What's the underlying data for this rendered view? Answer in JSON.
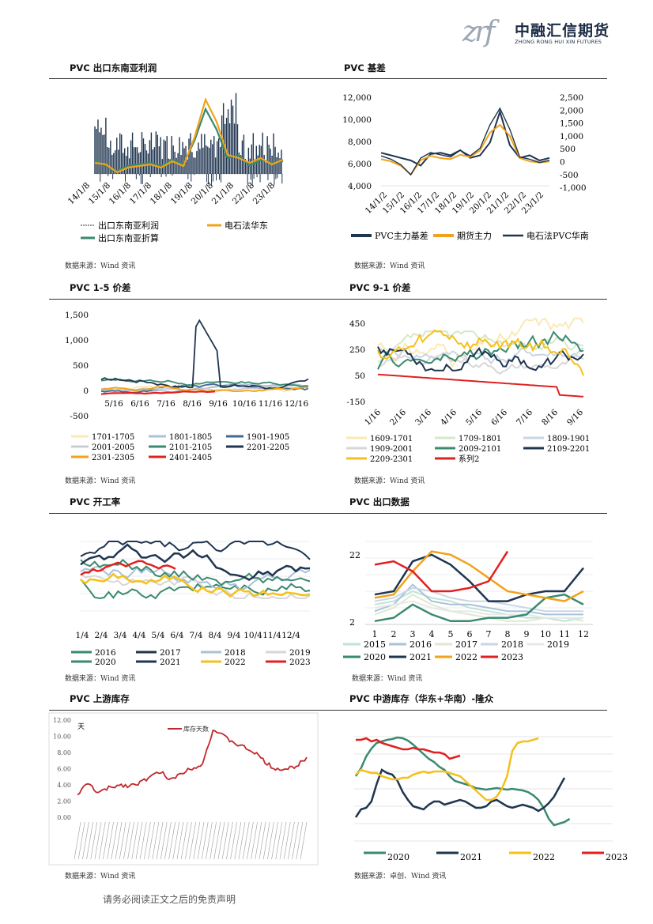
{
  "logo": {
    "cn": "中融汇信期货",
    "en": "ZHONG RONG HUI XIN FUTURES"
  },
  "footer": "请务必阅读正文之后的免责声明",
  "panels": [
    {
      "title": "PVC 出口东南亚利润",
      "source": "数据来源：Wind 资讯"
    },
    {
      "title": "PVC  基差",
      "source": "数据来源：Wind 资讯"
    },
    {
      "title": "PVC 1-5 价差",
      "source": "数据来源：Wind 资讯"
    },
    {
      "title": "PVC 9-1 价差",
      "source": "数据来源：Wind 资讯"
    },
    {
      "title": "PVC  开工率",
      "source": "数据来源：Wind 资讯"
    },
    {
      "title": "PVC 出口数据",
      "source": "数据来源：Wind 资讯"
    },
    {
      "title": "PVC 上游库存",
      "source": "数据来源：Wind 资讯"
    },
    {
      "title": "PVC 中游库存（华东+华南）-隆众",
      "source": "数据来源：卓创、Wind 资讯"
    }
  ],
  "chart_data": [
    {
      "type": "area",
      "title": "",
      "xlabels": [
        "14/1/8",
        "15/1/8",
        "16/1/8",
        "17/1/8",
        "18/1/8",
        "19/1/8",
        "20/1/8",
        "21/1/8",
        "22/1/8",
        "23/1/8"
      ],
      "series": [
        {
          "name": "出口东南亚利润",
          "values": [
            320,
            280,
            180,
            210,
            230,
            250,
            220,
            260,
            200,
            400,
            520,
            420,
            240,
            300,
            180,
            230,
            200,
            310
          ]
        },
        {
          "name": "电石法华东",
          "values": [
            220,
            210,
            160,
            190,
            200,
            210,
            190,
            230,
            200,
            380,
            620,
            480,
            270,
            250,
            220,
            250,
            210,
            240
          ]
        },
        {
          "name": "出口东南亚折算",
          "values": [
            240,
            200,
            170,
            200,
            210,
            220,
            200,
            240,
            210,
            360,
            560,
            430,
            250,
            270,
            200,
            240,
            220,
            230
          ]
        }
      ]
    },
    {
      "type": "line",
      "title": "",
      "xlabels": [
        "14/1/2",
        "15/1/2",
        "16/1/2",
        "17/1/2",
        "18/1/2",
        "19/1/2",
        "20/1/2",
        "21/1/2",
        "22/1/2",
        "23/1/2"
      ],
      "yleft": [
        "12,000",
        "10,000",
        "8,000",
        "6,000",
        "4,000"
      ],
      "yright": [
        "2,500",
        "2,000",
        "1,500",
        "1,000",
        "500",
        "0",
        "-500",
        "-1,000"
      ],
      "series": [
        {
          "name": "PVC主力基差",
          "values": [
            300,
            200,
            100,
            0,
            -200,
            250,
            300,
            200,
            400,
            100,
            200,
            700,
            1900,
            600,
            100,
            200,
            0,
            100
          ]
        },
        {
          "name": "期货主力",
          "values": [
            6400,
            6200,
            5800,
            5000,
            6300,
            6700,
            6500,
            6400,
            6800,
            6600,
            7200,
            8800,
            9500,
            8500,
            6500,
            6200,
            6100,
            6200
          ]
        },
        {
          "name": "电石法PVC华南",
          "values": [
            6700,
            6400,
            5900,
            5000,
            6500,
            7000,
            6800,
            6600,
            7200,
            6700,
            7400,
            9500,
            11000,
            9100,
            6600,
            6400,
            6100,
            6300
          ]
        }
      ]
    },
    {
      "type": "line",
      "title": "",
      "xlabels": [
        "5/16",
        "6/16",
        "7/16",
        "8/16",
        "9/16",
        "10/16",
        "11/16",
        "12/16"
      ],
      "yticks": [
        "1,500",
        "1,000",
        "500",
        "0",
        "-500"
      ],
      "series": [
        {
          "name": "1701-1705"
        },
        {
          "name": "1801-1805"
        },
        {
          "name": "1901-1905"
        },
        {
          "name": "2001-2005"
        },
        {
          "name": "2101-2105"
        },
        {
          "name": "2201-2205"
        },
        {
          "name": "2301-2305"
        },
        {
          "name": "2401-2405"
        }
      ]
    },
    {
      "type": "line",
      "title": "",
      "xlabels": [
        "1/16",
        "2/16",
        "3/16",
        "4/16",
        "5/16",
        "6/16",
        "7/16",
        "8/16",
        "9/16"
      ],
      "yticks": [
        "450",
        "250",
        "50",
        "-150"
      ],
      "series": [
        {
          "name": "1609-1701"
        },
        {
          "name": "1709-1801"
        },
        {
          "name": "1809-1901"
        },
        {
          "name": "1909-2001"
        },
        {
          "name": "2009-2101"
        },
        {
          "name": "2109-2201"
        },
        {
          "name": "2209-2301"
        },
        {
          "name": "系列2"
        }
      ]
    },
    {
      "type": "line",
      "title": "",
      "xlabels": [
        "1/4",
        "2/4",
        "3/4",
        "4/4",
        "5/4",
        "6/4",
        "7/4",
        "8/4",
        "9/4",
        "10/4",
        "11/4",
        "12/4"
      ],
      "series": [
        {
          "name": "2016"
        },
        {
          "name": "2017"
        },
        {
          "name": "2018"
        },
        {
          "name": "2019"
        },
        {
          "name": "2020"
        },
        {
          "name": "2021"
        },
        {
          "name": "2022"
        },
        {
          "name": "2023"
        }
      ]
    },
    {
      "type": "line",
      "title": "",
      "xlabels": [
        "1",
        "2",
        "3",
        "4",
        "5",
        "6",
        "7",
        "8",
        "9",
        "10",
        "11",
        "12"
      ],
      "yticks": [
        "22",
        "2"
      ],
      "series": [
        {
          "name": "2015"
        },
        {
          "name": "2016"
        },
        {
          "name": "2017"
        },
        {
          "name": "2018"
        },
        {
          "name": "2019"
        },
        {
          "name": "2020"
        },
        {
          "name": "2021"
        },
        {
          "name": "2022"
        },
        {
          "name": "2023"
        }
      ]
    },
    {
      "type": "line",
      "title": "",
      "ylabel": "天",
      "yticks": [
        "12.00",
        "10.00",
        "8.00",
        "6.00",
        "4.00",
        "2.00",
        "0.00"
      ],
      "series": [
        {
          "name": "库存天数",
          "values": [
            2.8,
            4.2,
            3.0,
            3.6,
            4.0,
            3.9,
            4.3,
            5.0,
            5.6,
            4.6,
            5.5,
            6.1,
            6.6,
            10.8,
            10.0,
            9.2,
            8.6,
            8.0,
            6.8,
            6.0,
            5.9,
            6.3,
            7.4
          ]
        }
      ]
    },
    {
      "type": "line",
      "title": "",
      "series": [
        {
          "name": "2020"
        },
        {
          "name": "2021"
        },
        {
          "name": "2022"
        },
        {
          "name": "2023"
        }
      ]
    }
  ]
}
